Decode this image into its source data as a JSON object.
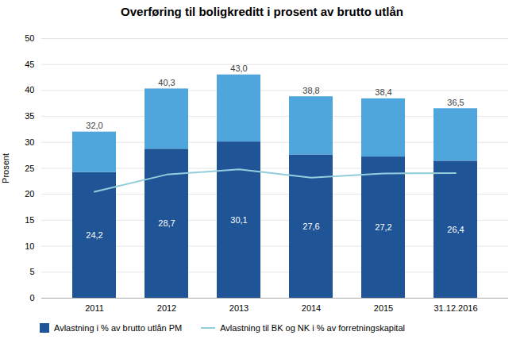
{
  "chart_data": {
    "type": "bar",
    "stacked": true,
    "title": "Overføring til boligkreditt i prosent av brutto utlån",
    "ylabel": "Prosent",
    "categories": [
      "2011",
      "2012",
      "2013",
      "2014",
      "2015",
      "31.12.2016"
    ],
    "series": [
      {
        "name": "Avlastning i % av brutto utlån PM",
        "type": "bar",
        "color": "#1F5496",
        "values": [
          24.2,
          28.7,
          30.1,
          27.6,
          27.2,
          26.4
        ],
        "data_labels": true,
        "value_labels": [
          "24,2",
          "28,7",
          "30,1",
          "27,6",
          "27,2",
          "26,4"
        ]
      },
      {
        "type": "bar",
        "color": "#4EA6DC",
        "values": [
          7.8,
          11.6,
          12.9,
          11.2,
          11.2,
          10.1
        ]
      },
      {
        "name": "Avlastning til BK og NK i % av forretningskapital",
        "type": "line",
        "color": "#92CDDC",
        "values": [
          20.5,
          23.8,
          24.8,
          23.2,
          24.0,
          24.1
        ]
      }
    ],
    "totals": [
      32.0,
      40.3,
      43.0,
      38.8,
      38.4,
      36.5
    ],
    "total_labels": [
      "32,0",
      "40,3",
      "43,0",
      "38,8",
      "38,4",
      "36,5"
    ],
    "ylim": [
      0,
      50
    ],
    "yticks": [
      0,
      5,
      10,
      15,
      20,
      25,
      30,
      35,
      40,
      45,
      50
    ],
    "grid": true,
    "legend": "lower left"
  }
}
